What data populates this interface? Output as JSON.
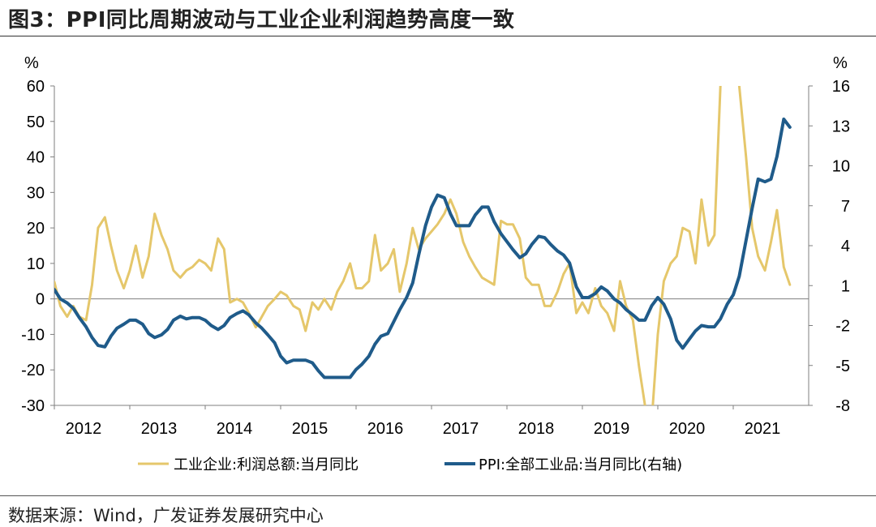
{
  "figure": {
    "title": "图3：PPI同比周期波动与工业企业利润趋势高度一致",
    "source": "数据来源：Wind，广发证券发展研究中心"
  },
  "chart_data": {
    "type": "line",
    "title": "图3：PPI同比周期波动与工业企业利润趋势高度一致",
    "left_axis": {
      "unit": "%",
      "range": [
        -30,
        60
      ],
      "ticks": [
        "60",
        "50",
        "40",
        "30",
        "20",
        "10",
        "0",
        "-10",
        "-20",
        "-30"
      ]
    },
    "right_axis": {
      "unit": "%",
      "range": [
        -8,
        16
      ],
      "ticks": [
        "16",
        "13",
        "10",
        "7",
        "4",
        "1",
        "-2",
        "-5",
        "-8"
      ]
    },
    "x_axis": {
      "range": [
        2012,
        2022
      ],
      "ticks": [
        "2012",
        "2013",
        "2014",
        "2015",
        "2016",
        "2017",
        "2018",
        "2019",
        "2020",
        "2021"
      ]
    },
    "legend_position": "bottom",
    "series": [
      {
        "name": "工业企业:利润总额:当月同比",
        "axis": "left",
        "color": "#E5C76B",
        "x": [
          2012.0,
          2012.08,
          2012.17,
          2012.25,
          2012.33,
          2012.42,
          2012.5,
          2012.58,
          2012.67,
          2012.75,
          2012.83,
          2012.92,
          2013.0,
          2013.08,
          2013.17,
          2013.25,
          2013.33,
          2013.42,
          2013.5,
          2013.58,
          2013.67,
          2013.75,
          2013.83,
          2013.92,
          2014.0,
          2014.08,
          2014.17,
          2014.25,
          2014.33,
          2014.42,
          2014.5,
          2014.58,
          2014.67,
          2014.75,
          2014.83,
          2014.92,
          2015.0,
          2015.08,
          2015.17,
          2015.25,
          2015.33,
          2015.42,
          2015.5,
          2015.58,
          2015.67,
          2015.75,
          2015.83,
          2015.92,
          2016.0,
          2016.08,
          2016.17,
          2016.25,
          2016.33,
          2016.42,
          2016.5,
          2016.58,
          2016.67,
          2016.75,
          2016.83,
          2016.92,
          2017.0,
          2017.08,
          2017.17,
          2017.25,
          2017.33,
          2017.42,
          2017.5,
          2017.58,
          2017.67,
          2017.75,
          2017.83,
          2017.92,
          2018.0,
          2018.08,
          2018.17,
          2018.25,
          2018.33,
          2018.42,
          2018.5,
          2018.58,
          2018.67,
          2018.75,
          2018.83,
          2018.92,
          2019.0,
          2019.08,
          2019.17,
          2019.25,
          2019.33,
          2019.42,
          2019.5,
          2019.58,
          2019.67,
          2019.75,
          2019.83,
          2019.92,
          2020.0,
          2020.08,
          2020.17,
          2020.25,
          2020.33,
          2020.42,
          2020.5,
          2020.58,
          2020.67,
          2020.75,
          2020.83,
          2020.92,
          2021.0,
          2021.08,
          2021.17,
          2021.25,
          2021.33,
          2021.42,
          2021.5,
          2021.58,
          2021.67,
          2021.75
        ],
        "values": [
          4.8,
          -2,
          -5,
          -2,
          -5,
          -6,
          4,
          20,
          23,
          15,
          8,
          3,
          8,
          15,
          6,
          12,
          24,
          18,
          14,
          8,
          6,
          8,
          9,
          11,
          10,
          8,
          17,
          14,
          -1,
          0,
          -1,
          -4,
          -8,
          -5,
          -2,
          0,
          2,
          1,
          -2,
          -3,
          -9,
          -1,
          -3,
          0,
          -3,
          2,
          5,
          10,
          3,
          3,
          5,
          18,
          8,
          10,
          14,
          2,
          10,
          20,
          14,
          17,
          19,
          21,
          24,
          28,
          24,
          16,
          12,
          9,
          6,
          5,
          4,
          22,
          21,
          21,
          17,
          6,
          4,
          4,
          -2,
          -2,
          2,
          7,
          10,
          -4,
          -1,
          -4,
          3,
          -2,
          -4,
          -9,
          5,
          -2,
          -6,
          -19,
          -30,
          -34,
          -10,
          5,
          10,
          12,
          20,
          19,
          10,
          28,
          15,
          18,
          60,
          75,
          80,
          60,
          40,
          20,
          12,
          8,
          16,
          25,
          9,
          4
        ],
        "note": "Line rises off the top of the plot area during early 2021."
      },
      {
        "name": "PPI:全部工业品:当月同比(右轴)",
        "axis": "right",
        "color": "#1F5B8A",
        "x": [
          2012.0,
          2012.08,
          2012.17,
          2012.25,
          2012.33,
          2012.42,
          2012.5,
          2012.58,
          2012.67,
          2012.75,
          2012.83,
          2012.92,
          2013.0,
          2013.08,
          2013.17,
          2013.25,
          2013.33,
          2013.42,
          2013.5,
          2013.58,
          2013.67,
          2013.75,
          2013.83,
          2013.92,
          2014.0,
          2014.08,
          2014.17,
          2014.25,
          2014.33,
          2014.42,
          2014.5,
          2014.58,
          2014.67,
          2014.75,
          2014.83,
          2014.92,
          2015.0,
          2015.08,
          2015.17,
          2015.25,
          2015.33,
          2015.42,
          2015.5,
          2015.58,
          2015.67,
          2015.75,
          2015.83,
          2015.92,
          2016.0,
          2016.08,
          2016.17,
          2016.25,
          2016.33,
          2016.42,
          2016.5,
          2016.58,
          2016.67,
          2016.75,
          2016.83,
          2016.92,
          2017.0,
          2017.08,
          2017.17,
          2017.25,
          2017.33,
          2017.42,
          2017.5,
          2017.58,
          2017.67,
          2017.75,
          2017.83,
          2017.92,
          2018.0,
          2018.08,
          2018.17,
          2018.25,
          2018.33,
          2018.42,
          2018.5,
          2018.58,
          2018.67,
          2018.75,
          2018.83,
          2018.92,
          2019.0,
          2019.08,
          2019.17,
          2019.25,
          2019.33,
          2019.42,
          2019.5,
          2019.58,
          2019.67,
          2019.75,
          2019.83,
          2019.92,
          2020.0,
          2020.08,
          2020.17,
          2020.25,
          2020.33,
          2020.42,
          2020.5,
          2020.58,
          2020.67,
          2020.75,
          2020.83,
          2020.92,
          2021.0,
          2021.08,
          2021.17,
          2021.25,
          2021.33,
          2021.42,
          2021.5,
          2021.58,
          2021.67,
          2021.75
        ],
        "values": [
          0.7,
          0.0,
          -0.3,
          -0.7,
          -1.4,
          -2.1,
          -2.9,
          -3.5,
          -3.6,
          -2.8,
          -2.2,
          -1.9,
          -1.6,
          -1.6,
          -1.9,
          -2.6,
          -2.9,
          -2.7,
          -2.3,
          -1.6,
          -1.3,
          -1.5,
          -1.4,
          -1.4,
          -1.6,
          -2.0,
          -2.3,
          -2.0,
          -1.4,
          -1.1,
          -0.9,
          -1.2,
          -1.8,
          -2.2,
          -2.7,
          -3.3,
          -4.3,
          -4.8,
          -4.6,
          -4.6,
          -4.6,
          -4.8,
          -5.4,
          -5.9,
          -5.9,
          -5.9,
          -5.9,
          -5.9,
          -5.3,
          -4.9,
          -4.3,
          -3.4,
          -2.8,
          -2.6,
          -1.7,
          -0.8,
          0.1,
          1.2,
          3.3,
          5.5,
          6.9,
          7.8,
          7.6,
          6.4,
          5.5,
          5.5,
          5.5,
          6.3,
          6.9,
          6.9,
          5.8,
          4.9,
          4.3,
          3.7,
          3.1,
          3.4,
          4.1,
          4.7,
          4.6,
          4.1,
          3.6,
          3.3,
          2.7,
          0.9,
          0.1,
          0.1,
          0.4,
          0.9,
          0.6,
          0.0,
          -0.3,
          -0.8,
          -1.2,
          -1.6,
          -1.6,
          -0.5,
          0.1,
          -0.4,
          -1.5,
          -3.1,
          -3.7,
          -3.0,
          -2.4,
          -2.0,
          -2.1,
          -2.1,
          -1.5,
          -0.4,
          0.3,
          1.7,
          4.4,
          6.8,
          9.0,
          8.8,
          9.0,
          10.7,
          13.5,
          12.9
        ]
      }
    ]
  }
}
